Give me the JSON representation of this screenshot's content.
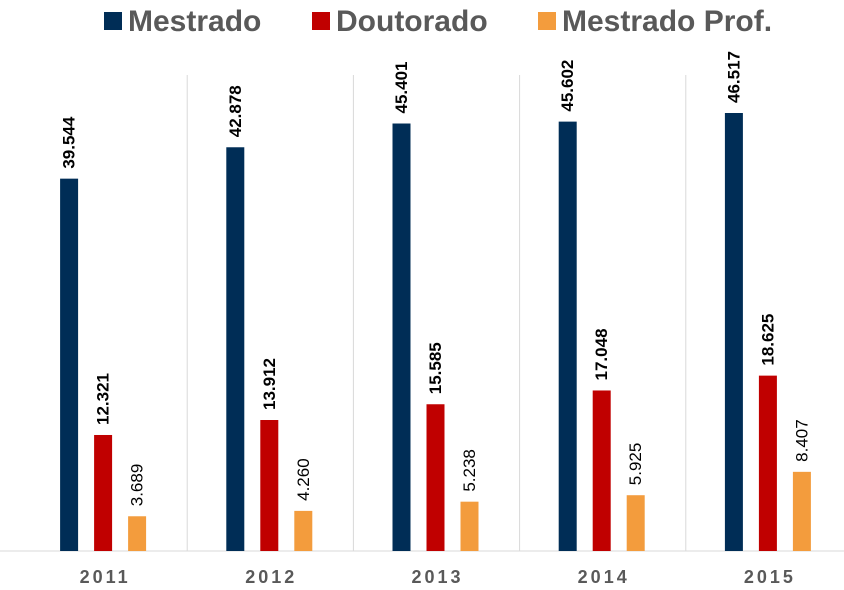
{
  "chart_data": {
    "type": "bar",
    "categories": [
      "2011",
      "2012",
      "2013",
      "2014",
      "2015"
    ],
    "series": [
      {
        "name": "Mestrado",
        "color": "#002d56",
        "values": [
          39544,
          42878,
          45401,
          45602,
          46517
        ],
        "value_labels": [
          "39.544",
          "42.878",
          "45.401",
          "45.602",
          "46.517"
        ]
      },
      {
        "name": "Doutorado",
        "color": "#c00000",
        "values": [
          12321,
          13912,
          15585,
          17048,
          18625
        ],
        "value_labels": [
          "12.321",
          "13.912",
          "15.585",
          "17.048",
          "18.625"
        ]
      },
      {
        "name": "Mestrado Prof.",
        "color": "#f39c3d",
        "values": [
          3689,
          4260,
          5238,
          5925,
          8407
        ],
        "value_labels": [
          "3.689",
          "4.260",
          "5.238",
          "5.925",
          "8.407"
        ]
      }
    ]
  }
}
